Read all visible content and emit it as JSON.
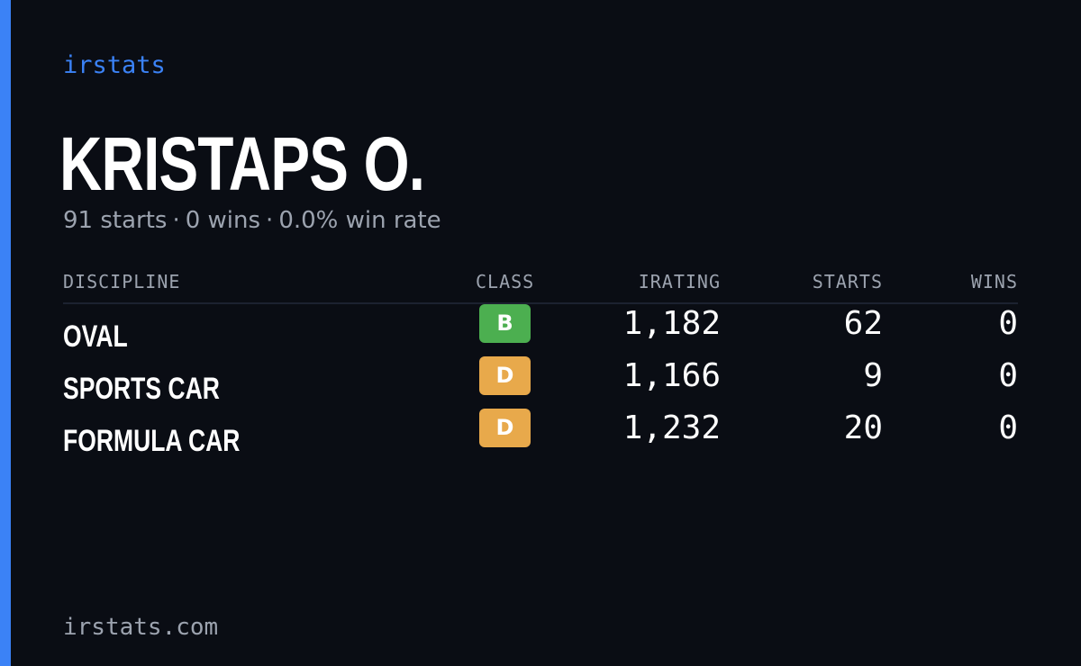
{
  "brand": "irstats",
  "accent_color": "#3b82f6",
  "player": {
    "name": "KRISTAPS O.",
    "starts_summary": "91 starts",
    "wins_summary": "0 wins",
    "win_rate_summary": "0.0% win rate",
    "separator": "·"
  },
  "table": {
    "headers": {
      "discipline": "DISCIPLINE",
      "class": "CLASS",
      "irating": "IRATING",
      "starts": "STARTS",
      "wins": "WINS"
    },
    "rows": [
      {
        "discipline": "OVAL",
        "class": "B",
        "class_color": "#4caf50",
        "irating": "1,182",
        "starts": "62",
        "wins": "0"
      },
      {
        "discipline": "SPORTS CAR",
        "class": "D",
        "class_color": "#e8a94b",
        "irating": "1,166",
        "starts": "9",
        "wins": "0"
      },
      {
        "discipline": "FORMULA CAR",
        "class": "D",
        "class_color": "#e8a94b",
        "irating": "1,232",
        "starts": "20",
        "wins": "0"
      }
    ]
  },
  "footer": "irstats.com"
}
